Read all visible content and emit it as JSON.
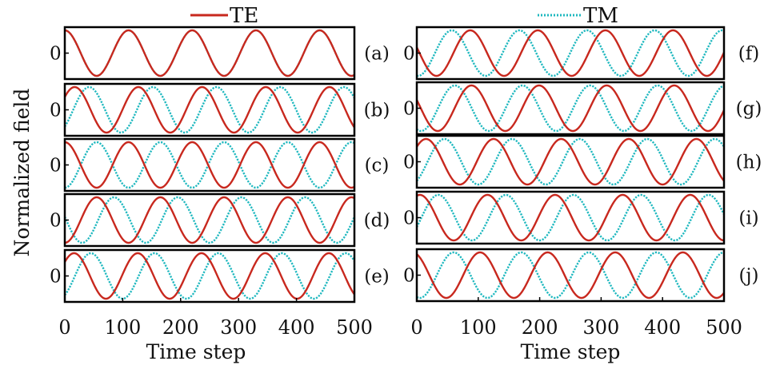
{
  "chart_data": {
    "type": "line",
    "ylabel": "Normalized field",
    "legend": [
      {
        "name": "TE",
        "color": "#c8281e",
        "style": "solid",
        "position": "top-left"
      },
      {
        "name": "TM",
        "color": "#1fb8bf",
        "style": "dotted",
        "position": "top-right"
      }
    ],
    "period": 110,
    "columns": [
      {
        "xlabel": "Time step",
        "xlim": [
          0,
          500
        ],
        "xticks": [
          0,
          100,
          200,
          300,
          400,
          500
        ],
        "panels": [
          {
            "label": "(a)",
            "ytick": "0",
            "te_peak": 0,
            "tm_peak": 0
          },
          {
            "label": "(b)",
            "ytick": "0",
            "te_peak": 17,
            "tm_peak": 42
          },
          {
            "label": "(c)",
            "ytick": "0",
            "te_peak": 0,
            "tm_peak": 55
          },
          {
            "label": "(d)",
            "ytick": "0",
            "te_peak": 55,
            "tm_peak": 85
          },
          {
            "label": "(e)",
            "ytick": "0",
            "te_peak": 16,
            "tm_peak": 45
          }
        ]
      },
      {
        "xlabel": "Time step",
        "xlim": [
          0,
          500
        ],
        "xticks": [
          0,
          100,
          200,
          300,
          400,
          500
        ],
        "panels": [
          {
            "label": "(f)",
            "ytick": "0",
            "te_peak": 87,
            "tm_peak": 57
          },
          {
            "label": "(g)",
            "ytick": "0",
            "te_peak": 89,
            "tm_peak": 62
          },
          {
            "label": "(h)",
            "ytick": "0",
            "te_peak": 15,
            "tm_peak": 45
          },
          {
            "label": "(i)",
            "ytick": "0",
            "te_peak": 5,
            "tm_peak": 35
          },
          {
            "label": "(j)",
            "ytick": "0",
            "te_peak": 103,
            "tm_peak": 60
          }
        ]
      }
    ]
  }
}
